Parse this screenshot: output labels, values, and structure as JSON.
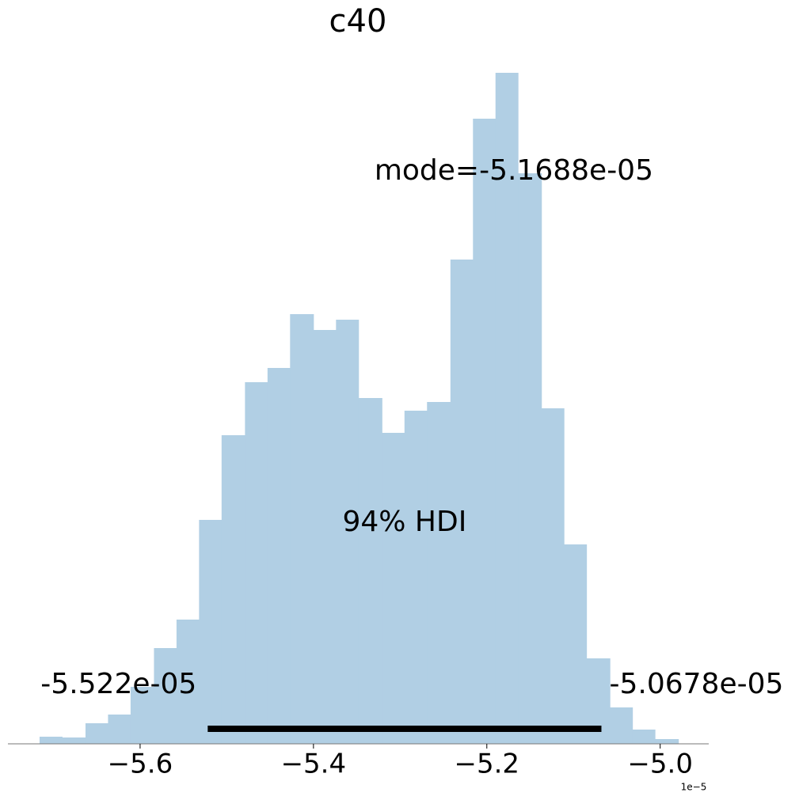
{
  "chart_data": {
    "type": "histogram",
    "title": "c40",
    "bins": [
      -5.716,
      -5.69,
      -5.663,
      -5.637,
      -5.611,
      -5.584,
      -5.558,
      -5.532,
      -5.506,
      -5.479,
      -5.453,
      -5.427,
      -5.4,
      -5.374,
      -5.348,
      -5.321,
      -5.295,
      -5.269,
      -5.242,
      -5.216,
      -5.19,
      -5.164,
      -5.137,
      -5.111,
      -5.085,
      -5.058,
      -5.032,
      -5.006,
      -4.979
    ],
    "values": [
      9,
      8,
      26,
      37,
      72,
      121,
      157,
      283,
      390,
      457,
      475,
      543,
      523,
      536,
      437,
      393,
      421,
      432,
      612,
      790,
      848,
      721,
      424,
      252,
      108,
      46,
      18,
      6
    ],
    "color": "#b1cfe4",
    "xlim": [
      -5.7525,
      -4.944
    ],
    "ylim": [
      0,
      890
    ],
    "xticks": [
      {
        "value": -5.6,
        "label": "−5.6"
      },
      {
        "value": -5.4,
        "label": "−5.4"
      },
      {
        "value": -5.2,
        "label": "−5.2"
      },
      {
        "value": -5.0,
        "label": "−5.0"
      }
    ],
    "x_offset_label": "1e−5",
    "mode": {
      "value": -5.1688,
      "label": "mode=-5.1688e-05"
    },
    "hdi": {
      "label": "94% HDI",
      "values": [
        -5.522,
        -5.0678
      ],
      "value_labels": [
        "-5.522e-05",
        "-5.0678e-05"
      ],
      "color": "#000000"
    }
  }
}
